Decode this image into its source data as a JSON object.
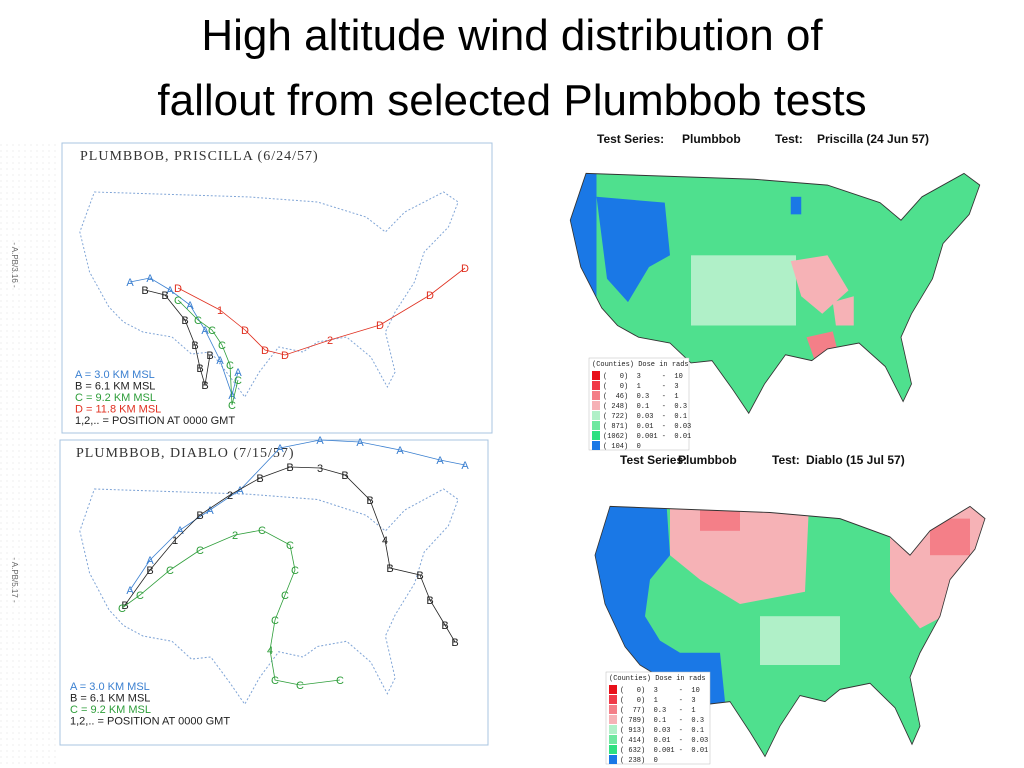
{
  "title": [
    "High altitude wind distribution of",
    "fallout from selected Plumbbob tests"
  ],
  "left_panels": [
    {
      "title": "PLUMBBOB, PRISCILLA (6/24/57)",
      "side_label": "- A.PB/3.16 -",
      "legend": [
        {
          "text": "A = 3.0 KM MSL",
          "color": "#3a7fd0"
        },
        {
          "text": "B = 6.1 KM MSL",
          "color": "#222222"
        },
        {
          "text": "C = 9.2 KM MSL",
          "color": "#2e9e3a"
        },
        {
          "text": "D = 11.8 KM MSL",
          "color": "#e03020"
        },
        {
          "text": "1,2,.. = POSITION AT 0000 GMT",
          "color": "#222222"
        }
      ],
      "tracks": [
        {
          "letter": "A",
          "color": "#3a7fd0"
        },
        {
          "letter": "B",
          "color": "#222222"
        },
        {
          "letter": "C",
          "color": "#2e9e3a"
        },
        {
          "letter": "D",
          "color": "#e03020",
          "positions": [
            "1",
            "2"
          ]
        }
      ]
    },
    {
      "title": "PLUMBBOB, DIABLO (7/15/57)",
      "side_label": "- A.PB/5.17 -",
      "legend": [
        {
          "text": "A = 3.0 KM MSL",
          "color": "#3a7fd0"
        },
        {
          "text": "B = 6.1 KM MSL",
          "color": "#222222"
        },
        {
          "text": "C = 9.2 KM MSL",
          "color": "#2e9e3a"
        },
        {
          "text": "1,2,.. = POSITION AT 0000 GMT",
          "color": "#222222"
        }
      ],
      "tracks": [
        {
          "letter": "A",
          "color": "#3a7fd0"
        },
        {
          "letter": "B",
          "color": "#222222",
          "positions": [
            "1",
            "2",
            "3",
            "4"
          ]
        },
        {
          "letter": "C",
          "color": "#2e9e3a",
          "positions": [
            "2",
            "4"
          ]
        }
      ]
    }
  ],
  "right_panels": [
    {
      "series_label": "Test Series:",
      "series": "Plumbbob",
      "test_label": "Test:",
      "test": "Priscilla (24 Jun 57)",
      "legend_title": "(Counties) Dose in rads",
      "legend": [
        "(   0)  3     -  10",
        "(   0)  1     -  3",
        "(  46)  0.3   -  1",
        "( 248)  0.1   -  0.3",
        "( 722)  0.03  -  0.1",
        "( 871)  0.01  -  0.03",
        "(1062)  0.001 -  0.01",
        "( 104)  0"
      ]
    },
    {
      "series_label": "Test Series:",
      "series": "Plumbbob",
      "test_label": "Test:",
      "test": "Diablo (15 Jul 57)",
      "legend_title": "(Counties) Dose in rads",
      "legend": [
        "(   0)  3     -  10",
        "(   0)  1     -  3",
        "(  77)  0.3   -  1",
        "( 789)  0.1   -  0.3",
        "( 913)  0.03  -  0.1",
        "( 414)  0.01  -  0.03",
        "( 632)  0.001 -  0.01",
        "( 238)  0"
      ]
    }
  ]
}
